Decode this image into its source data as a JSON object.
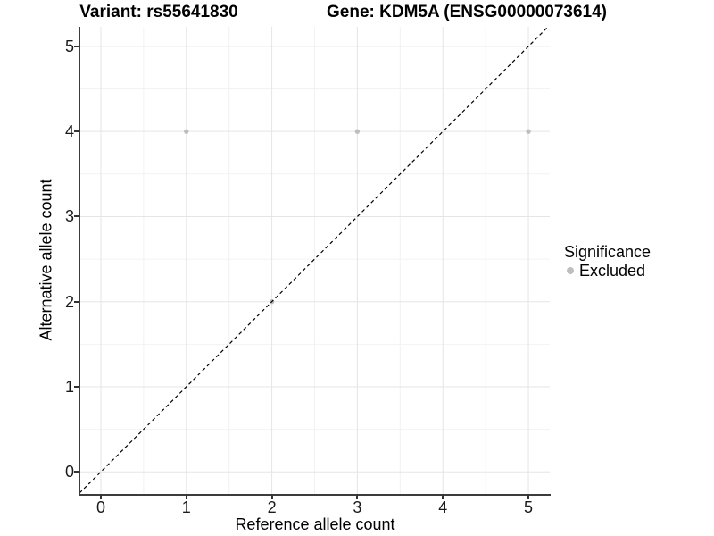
{
  "titles": {
    "variant": "Variant: rs55641830",
    "gene": "Gene: KDM5A (ENSG00000073614)"
  },
  "legend": {
    "title": "Significance",
    "items": [
      {
        "label": "Excluded",
        "color": "#bebebe"
      }
    ]
  },
  "colors": {
    "point": "#bebebe",
    "axis_line": "#3c3c3c",
    "tick_mark": "#333333",
    "grid_major": "#e5e5e5",
    "grid_minor": "#f2f2f2",
    "identity_line": "#000000",
    "text": "#000000"
  },
  "chart_data": {
    "type": "scatter",
    "title": "Variant: rs55641830  /  Gene: KDM5A (ENSG00000073614)",
    "xlabel": "Reference allele count",
    "ylabel": "Alternative allele count",
    "x_ticks": [
      0,
      1,
      2,
      3,
      4,
      5
    ],
    "y_ticks": [
      0,
      1,
      2,
      3,
      4,
      5
    ],
    "xlim": [
      -0.25,
      5.25
    ],
    "ylim": [
      -0.26,
      5.23
    ],
    "grid": "on",
    "minor_grid_step": 0.5,
    "legend_position": "right",
    "series": [
      {
        "name": "Excluded",
        "color": "#bebebe",
        "points": [
          [
            1,
            4
          ],
          [
            2,
            2
          ],
          [
            3,
            4
          ],
          [
            5,
            4
          ]
        ]
      }
    ],
    "reference_line": {
      "kind": "identity",
      "slope": 1,
      "intercept": 0,
      "style": "dashed",
      "color": "#000000"
    }
  }
}
